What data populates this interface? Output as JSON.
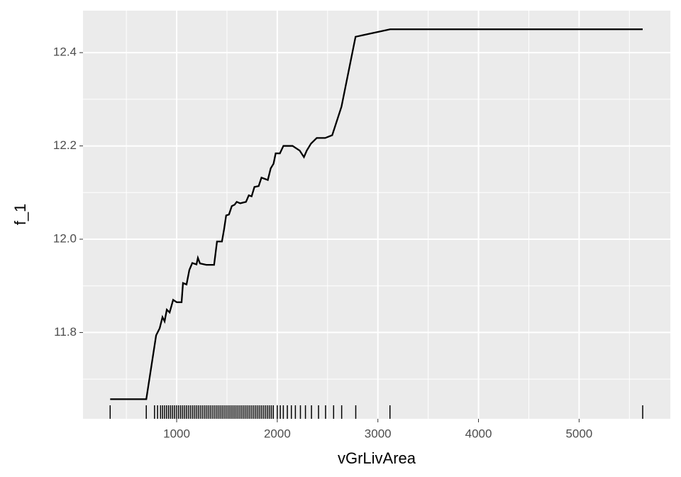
{
  "chart_data": {
    "type": "line",
    "x_label": "vGrLivArea",
    "y_label": "f_1",
    "x": [
      339,
      698,
      796,
      831,
      859,
      880,
      902,
      930,
      965,
      1000,
      1049,
      1063,
      1098,
      1126,
      1155,
      1197,
      1211,
      1232,
      1295,
      1372,
      1401,
      1450,
      1471,
      1492,
      1520,
      1548,
      1576,
      1597,
      1632,
      1689,
      1717,
      1745,
      1773,
      1815,
      1843,
      1906,
      1935,
      1963,
      1984,
      2026,
      2061,
      2152,
      2223,
      2265,
      2293,
      2335,
      2392,
      2476,
      2546,
      2638,
      2778,
      3122,
      5632
    ],
    "series": [
      {
        "color": "#000000",
        "values": [
          11.657,
          11.657,
          11.794,
          11.809,
          11.833,
          11.824,
          11.849,
          11.843,
          11.87,
          11.865,
          11.865,
          11.906,
          11.903,
          11.934,
          11.949,
          11.946,
          11.96,
          11.948,
          11.945,
          11.945,
          11.995,
          11.995,
          12.021,
          12.051,
          12.053,
          12.071,
          12.074,
          12.08,
          12.077,
          12.08,
          12.094,
          12.092,
          12.112,
          12.114,
          12.132,
          12.127,
          12.152,
          12.162,
          12.184,
          12.184,
          12.2,
          12.2,
          12.19,
          12.176,
          12.19,
          12.205,
          12.217,
          12.217,
          12.223,
          12.284,
          12.434,
          12.45,
          12.45
        ]
      }
    ],
    "rug": [
      339,
      698,
      780,
      810,
      840,
      860,
      880,
      900,
      920,
      940,
      960,
      980,
      1000,
      1020,
      1040,
      1060,
      1080,
      1100,
      1120,
      1140,
      1160,
      1180,
      1200,
      1220,
      1240,
      1260,
      1280,
      1300,
      1320,
      1340,
      1360,
      1380,
      1400,
      1420,
      1440,
      1460,
      1480,
      1500,
      1520,
      1540,
      1560,
      1580,
      1600,
      1620,
      1640,
      1660,
      1680,
      1700,
      1720,
      1740,
      1760,
      1780,
      1800,
      1820,
      1840,
      1860,
      1880,
      1900,
      1920,
      1940,
      1960,
      2000,
      2030,
      2060,
      2100,
      2140,
      2180,
      2230,
      2280,
      2340,
      2410,
      2480,
      2560,
      2640,
      2780,
      3120,
      5632
    ],
    "rug_color": "#000000",
    "xlim": [
      69,
      5907
    ],
    "ylim": [
      11.615,
      12.49
    ],
    "xticks": [
      1000,
      2000,
      3000,
      4000,
      5000
    ],
    "yticks": [
      11.8,
      {
        "value": 12,
        "label": "12.0"
      },
      12.2,
      12.4
    ],
    "x_minor_ticks": [
      500,
      1500,
      2500,
      3500,
      4500,
      5500
    ],
    "y_minor_ticks": [
      11.7,
      11.9,
      12.1,
      12.3
    ],
    "grid": true
  }
}
